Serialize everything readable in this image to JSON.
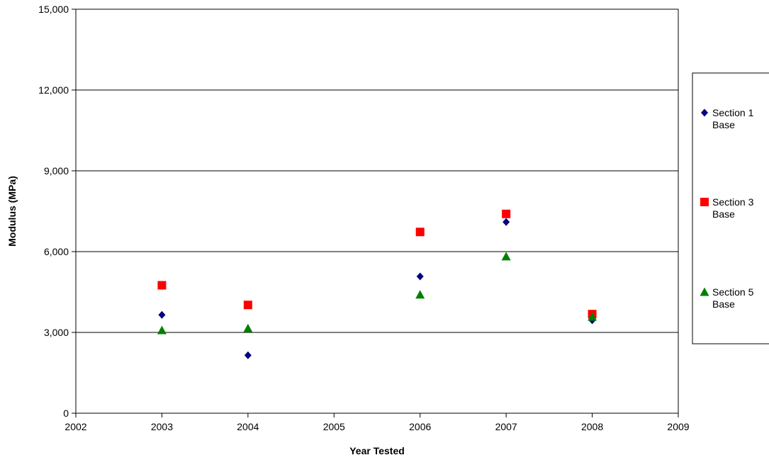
{
  "chart_data": {
    "type": "scatter",
    "title": "",
    "xlabel": "Year Tested",
    "ylabel": "Modulus (MPa)",
    "xlim": [
      2002,
      2009
    ],
    "ylim": [
      0,
      15000
    ],
    "x_ticks": [
      "2002",
      "2003",
      "2004",
      "2005",
      "2006",
      "2007",
      "2008",
      "2009"
    ],
    "y_ticks": [
      "0",
      "3,000",
      "6,000",
      "9,000",
      "12,000",
      "15,000"
    ],
    "grid": "horizontal",
    "legend_position": "right",
    "series": [
      {
        "name": "Section 1 Base",
        "legend_lines": [
          "Section 1",
          "Base"
        ],
        "marker": "diamond",
        "color": "#000080",
        "points": [
          [
            2003,
            3650
          ],
          [
            2004,
            2150
          ],
          [
            2006,
            5080
          ],
          [
            2007,
            7100
          ],
          [
            2008,
            3450
          ]
        ]
      },
      {
        "name": "Section 3 Base",
        "legend_lines": [
          "Section 3",
          "Base"
        ],
        "marker": "square",
        "color": "#ff0000",
        "points": [
          [
            2003,
            4750
          ],
          [
            2004,
            4020
          ],
          [
            2006,
            6730
          ],
          [
            2007,
            7400
          ],
          [
            2008,
            3680
          ]
        ]
      },
      {
        "name": "Section 5 Base",
        "legend_lines": [
          "Section 5",
          "Base"
        ],
        "marker": "triangle",
        "color": "#008000",
        "points": [
          [
            2003,
            3080
          ],
          [
            2004,
            3150
          ],
          [
            2006,
            4400
          ],
          [
            2007,
            5820
          ],
          [
            2008,
            3580
          ]
        ]
      }
    ]
  }
}
